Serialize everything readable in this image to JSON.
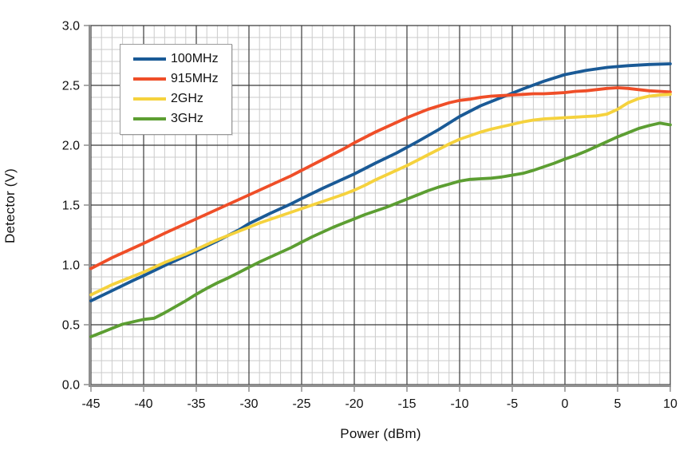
{
  "chart_data": {
    "type": "line",
    "title": "",
    "xlabel": "Power (dBm)",
    "ylabel": "Detector (V)",
    "xlim": [
      -45,
      10
    ],
    "ylim": [
      0,
      3
    ],
    "x_major_step": 5,
    "x_minor_step": 1,
    "y_major_step": 0.5,
    "y_minor_step": 0.1,
    "x_tick_labels": [
      "-45",
      "-40",
      "-35",
      "-30",
      "-25",
      "-20",
      "-15",
      "-10",
      "-5",
      "0",
      "5",
      "10"
    ],
    "y_tick_labels": [
      "0.0",
      "0.5",
      "1.0",
      "1.5",
      "2.0",
      "2.5",
      "3.0"
    ],
    "grid": "major and minor, on",
    "legend_position": "upper-left",
    "series": [
      {
        "name": "100MHz",
        "color": "#1A5A96",
        "points": [
          [
            -45,
            0.7
          ],
          [
            -43,
            0.785
          ],
          [
            -41,
            0.87
          ],
          [
            -40,
            0.91
          ],
          [
            -38,
            0.995
          ],
          [
            -36,
            1.075
          ],
          [
            -35,
            1.115
          ],
          [
            -33,
            1.2
          ],
          [
            -31,
            1.29
          ],
          [
            -30,
            1.345
          ],
          [
            -28,
            1.43
          ],
          [
            -26,
            1.51
          ],
          [
            -25,
            1.555
          ],
          [
            -23,
            1.64
          ],
          [
            -21,
            1.72
          ],
          [
            -20,
            1.76
          ],
          [
            -18,
            1.85
          ],
          [
            -16,
            1.935
          ],
          [
            -14,
            2.03
          ],
          [
            -12,
            2.13
          ],
          [
            -10,
            2.24
          ],
          [
            -8,
            2.33
          ],
          [
            -6,
            2.4
          ],
          [
            -4,
            2.47
          ],
          [
            -2,
            2.535
          ],
          [
            0,
            2.59
          ],
          [
            2,
            2.625
          ],
          [
            4,
            2.65
          ],
          [
            6,
            2.665
          ],
          [
            8,
            2.675
          ],
          [
            10,
            2.68
          ]
        ]
      },
      {
        "name": "915MHz",
        "color": "#EF4E28",
        "points": [
          [
            -45,
            0.97
          ],
          [
            -43,
            1.06
          ],
          [
            -41,
            1.14
          ],
          [
            -40,
            1.18
          ],
          [
            -38,
            1.265
          ],
          [
            -36,
            1.345
          ],
          [
            -35,
            1.385
          ],
          [
            -33,
            1.465
          ],
          [
            -31,
            1.545
          ],
          [
            -30,
            1.585
          ],
          [
            -28,
            1.665
          ],
          [
            -26,
            1.745
          ],
          [
            -25,
            1.79
          ],
          [
            -23,
            1.88
          ],
          [
            -21,
            1.97
          ],
          [
            -20,
            2.02
          ],
          [
            -18,
            2.11
          ],
          [
            -16,
            2.19
          ],
          [
            -15,
            2.23
          ],
          [
            -13,
            2.3
          ],
          [
            -11,
            2.355
          ],
          [
            -10,
            2.375
          ],
          [
            -9,
            2.385
          ],
          [
            -8,
            2.4
          ],
          [
            -7,
            2.41
          ],
          [
            -6,
            2.415
          ],
          [
            -5,
            2.42
          ],
          [
            -4,
            2.425
          ],
          [
            -3,
            2.43
          ],
          [
            -2,
            2.43
          ],
          [
            -1,
            2.435
          ],
          [
            0,
            2.44
          ],
          [
            1,
            2.45
          ],
          [
            2,
            2.455
          ],
          [
            3,
            2.465
          ],
          [
            4,
            2.475
          ],
          [
            5,
            2.48
          ],
          [
            6,
            2.475
          ],
          [
            7,
            2.465
          ],
          [
            8,
            2.455
          ],
          [
            9,
            2.45
          ],
          [
            10,
            2.445
          ]
        ]
      },
      {
        "name": "2GHz",
        "color": "#F5D23D",
        "points": [
          [
            -45,
            0.75
          ],
          [
            -43,
            0.835
          ],
          [
            -41,
            0.905
          ],
          [
            -40,
            0.94
          ],
          [
            -38,
            1.02
          ],
          [
            -36,
            1.09
          ],
          [
            -35,
            1.13
          ],
          [
            -33,
            1.21
          ],
          [
            -31,
            1.28
          ],
          [
            -30,
            1.315
          ],
          [
            -29,
            1.35
          ],
          [
            -28,
            1.38
          ],
          [
            -26,
            1.44
          ],
          [
            -25,
            1.47
          ],
          [
            -24,
            1.5
          ],
          [
            -23,
            1.53
          ],
          [
            -22,
            1.56
          ],
          [
            -21,
            1.59
          ],
          [
            -20,
            1.625
          ],
          [
            -19,
            1.665
          ],
          [
            -18,
            1.71
          ],
          [
            -17,
            1.75
          ],
          [
            -16,
            1.79
          ],
          [
            -15,
            1.83
          ],
          [
            -14,
            1.875
          ],
          [
            -13,
            1.92
          ],
          [
            -12,
            1.965
          ],
          [
            -11,
            2.01
          ],
          [
            -10,
            2.05
          ],
          [
            -9,
            2.08
          ],
          [
            -8,
            2.11
          ],
          [
            -7,
            2.135
          ],
          [
            -6,
            2.155
          ],
          [
            -5,
            2.175
          ],
          [
            -4,
            2.195
          ],
          [
            -3,
            2.21
          ],
          [
            -2,
            2.22
          ],
          [
            -1,
            2.225
          ],
          [
            0,
            2.23
          ],
          [
            1,
            2.235
          ],
          [
            2,
            2.24
          ],
          [
            3,
            2.245
          ],
          [
            4,
            2.26
          ],
          [
            5,
            2.3
          ],
          [
            6,
            2.355
          ],
          [
            7,
            2.39
          ],
          [
            8,
            2.41
          ],
          [
            9,
            2.42
          ],
          [
            10,
            2.425
          ]
        ]
      },
      {
        "name": "3GHz",
        "color": "#5C9E32",
        "points": [
          [
            -45,
            0.4
          ],
          [
            -44,
            0.435
          ],
          [
            -43,
            0.47
          ],
          [
            -42,
            0.505
          ],
          [
            -41,
            0.525
          ],
          [
            -40,
            0.545
          ],
          [
            -39,
            0.555
          ],
          [
            -38,
            0.6
          ],
          [
            -37,
            0.65
          ],
          [
            -36,
            0.7
          ],
          [
            -35,
            0.755
          ],
          [
            -34,
            0.805
          ],
          [
            -33,
            0.85
          ],
          [
            -32,
            0.89
          ],
          [
            -31,
            0.935
          ],
          [
            -30,
            0.98
          ],
          [
            -29,
            1.025
          ],
          [
            -28,
            1.065
          ],
          [
            -27,
            1.105
          ],
          [
            -26,
            1.145
          ],
          [
            -25,
            1.19
          ],
          [
            -24,
            1.235
          ],
          [
            -23,
            1.275
          ],
          [
            -22,
            1.315
          ],
          [
            -21,
            1.35
          ],
          [
            -20,
            1.385
          ],
          [
            -19,
            1.42
          ],
          [
            -18,
            1.45
          ],
          [
            -17,
            1.48
          ],
          [
            -16,
            1.515
          ],
          [
            -15,
            1.55
          ],
          [
            -14,
            1.585
          ],
          [
            -13,
            1.62
          ],
          [
            -12,
            1.65
          ],
          [
            -11,
            1.675
          ],
          [
            -10,
            1.7
          ],
          [
            -9,
            1.715
          ],
          [
            -8,
            1.72
          ],
          [
            -7,
            1.725
          ],
          [
            -6,
            1.735
          ],
          [
            -5,
            1.75
          ],
          [
            -4,
            1.765
          ],
          [
            -3,
            1.79
          ],
          [
            -2,
            1.82
          ],
          [
            -1,
            1.85
          ],
          [
            0,
            1.885
          ],
          [
            1,
            1.915
          ],
          [
            2,
            1.95
          ],
          [
            3,
            1.99
          ],
          [
            4,
            2.03
          ],
          [
            5,
            2.07
          ],
          [
            6,
            2.105
          ],
          [
            7,
            2.14
          ],
          [
            8,
            2.165
          ],
          [
            9,
            2.185
          ],
          [
            10,
            2.17
          ]
        ]
      }
    ],
    "style": {
      "background": "#FFFFFF",
      "minor_grid_color": "#CBCBCB",
      "major_grid_color": "#3B3B3B",
      "spine_color": "#8F8F8F",
      "text_color": "#111111",
      "line_width": 3.8
    }
  }
}
